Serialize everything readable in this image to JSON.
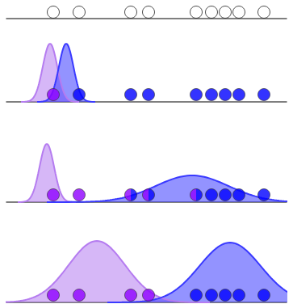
{
  "chart_data": [
    {
      "type": "scatter",
      "xlim": [
        0,
        347
      ],
      "ylim": [
        0,
        20
      ],
      "tick_labels": false,
      "marker": "open",
      "x": [
        58,
        90,
        154,
        176,
        235,
        254,
        271,
        288,
        319
      ],
      "values": [
        8,
        8,
        8,
        8,
        8,
        8,
        8,
        8,
        8
      ],
      "colors": [
        "#ffffff",
        "#ffffff",
        "#ffffff",
        "#ffffff",
        "#ffffff",
        "#ffffff",
        "#ffffff",
        "#ffffff",
        "#ffffff"
      ],
      "curves": []
    },
    {
      "type": "scatter",
      "xlim": [
        0,
        347
      ],
      "ylim": [
        0,
        80
      ],
      "tick_labels": false,
      "marker": "circle",
      "x": [
        58,
        90,
        154,
        176,
        235,
        254,
        271,
        288,
        319
      ],
      "values": [
        9,
        9,
        9,
        9,
        9,
        9,
        9,
        9,
        9
      ],
      "colors": [
        "#8f00ff",
        "#0000ff",
        "#0000ff",
        "#0000ff",
        "#0000ff",
        "#0000ff",
        "#0000ff",
        "#0000ff",
        "#0000ff"
      ],
      "curves": [
        {
          "mean": 54,
          "sd": 9,
          "peak": 72,
          "color": "#b57cf0"
        },
        {
          "mean": 74,
          "sd": 9,
          "peak": 72,
          "color": "#3a3aff"
        }
      ]
    },
    {
      "type": "scatter",
      "xlim": [
        0,
        347
      ],
      "ylim": [
        0,
        80
      ],
      "tick_labels": false,
      "marker": "circle",
      "x": [
        58,
        90,
        154,
        176,
        235,
        254,
        271,
        288,
        319
      ],
      "values": [
        9,
        9,
        9,
        9,
        9,
        9,
        9,
        9,
        9
      ],
      "colors": [
        "#8f00ff",
        "#8f00ff",
        [
          "#8f00ff",
          "#0000ff"
        ],
        [
          "#8f00ff",
          "#0000ff"
        ],
        [
          "#8f00ff",
          "#0000ff"
        ],
        "#0000ff",
        "#0000ff",
        "#0000ff",
        "#0000ff"
      ],
      "curves": [
        {
          "mean": 50,
          "sd": 9,
          "peak": 72,
          "color": "#b57cf0"
        },
        {
          "mean": 230,
          "sd": 45,
          "peak": 33,
          "color": "#3a3aff"
        }
      ]
    },
    {
      "type": "scatter",
      "xlim": [
        0,
        347
      ],
      "ylim": [
        0,
        80
      ],
      "tick_labels": false,
      "marker": "circle",
      "x": [
        58,
        90,
        154,
        176,
        235,
        254,
        271,
        288,
        319
      ],
      "values": [
        9,
        9,
        9,
        9,
        9,
        9,
        9,
        9,
        9
      ],
      "colors": [
        "#8f00ff",
        "#8f00ff",
        "#8f00ff",
        "#8f00ff",
        "#0000ff",
        "#0000ff",
        "#0000ff",
        "#0000ff",
        "#0000ff"
      ],
      "curves": [
        {
          "mean": 112,
          "sd": 35,
          "peak": 76,
          "color": "#b57cf0"
        },
        {
          "mean": 277,
          "sd": 38,
          "peak": 74,
          "color": "#3a3aff"
        }
      ]
    }
  ]
}
